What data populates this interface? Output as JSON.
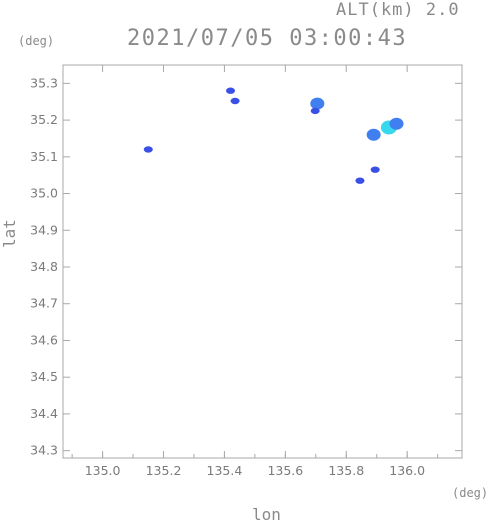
{
  "header": {
    "altitude": "ALT(km) 2.0",
    "timestamp": "2021/07/05 03:00:43"
  },
  "chart_data": {
    "type": "scatter",
    "title": "2021/07/05 03:00:43",
    "xlabel": "lon",
    "ylabel": "lat",
    "x_unit": "(deg)",
    "y_unit": "(deg)",
    "xlim": [
      134.87,
      136.18
    ],
    "ylim": [
      34.28,
      35.35
    ],
    "x_ticks": [
      "135.0",
      "135.2",
      "135.4",
      "135.6",
      "135.8",
      "136.0"
    ],
    "y_ticks": [
      "34.3",
      "34.4",
      "34.5",
      "34.6",
      "34.7",
      "34.8",
      "34.9",
      "35.0",
      "35.1",
      "35.2",
      "35.3"
    ],
    "grid": false,
    "colors": {
      "weak": "#3a4fe6",
      "medium": "#3f7ff0",
      "strong": "#36d8ee",
      "axis": "#a8a8a8"
    },
    "echoes": [
      {
        "lon": 135.15,
        "lat": 35.12,
        "level": "weak"
      },
      {
        "lon": 135.42,
        "lat": 35.28,
        "level": "weak"
      },
      {
        "lon": 135.435,
        "lat": 35.252,
        "level": "weak"
      },
      {
        "lon": 135.705,
        "lat": 35.245,
        "level": "medium"
      },
      {
        "lon": 135.698,
        "lat": 35.225,
        "level": "weak"
      },
      {
        "lon": 135.89,
        "lat": 35.16,
        "level": "medium"
      },
      {
        "lon": 135.94,
        "lat": 35.18,
        "level": "strong"
      },
      {
        "lon": 135.965,
        "lat": 35.19,
        "level": "medium"
      },
      {
        "lon": 135.895,
        "lat": 35.065,
        "level": "weak"
      },
      {
        "lon": 135.845,
        "lat": 35.035,
        "level": "weak"
      }
    ]
  }
}
